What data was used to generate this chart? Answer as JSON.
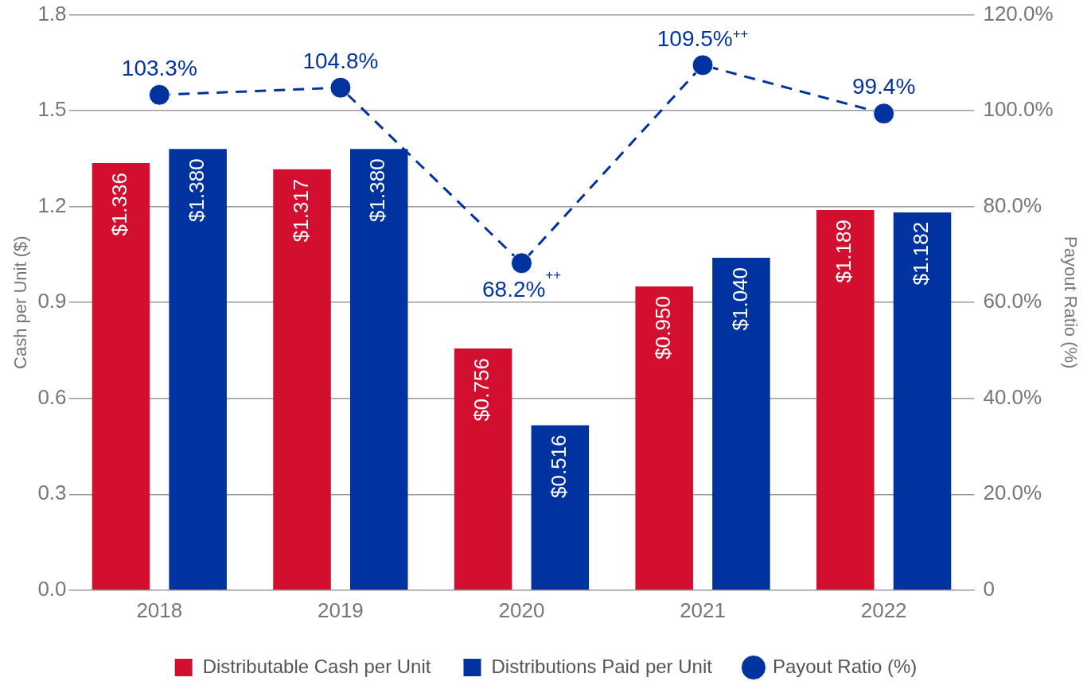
{
  "chart_data": {
    "type": "bar",
    "categories": [
      "2018",
      "2019",
      "2020",
      "2021",
      "2022"
    ],
    "ylabel": "Cash per Unit ($)",
    "y2label": "Payout Ratio (%)",
    "ylim": [
      0,
      1.8
    ],
    "yticks": [
      {
        "value": 0,
        "label": "0.0"
      },
      0.3,
      0.6,
      0.9,
      1.2,
      1.5,
      1.8
    ],
    "y2lim": [
      0,
      120
    ],
    "y2ticks": [
      {
        "value": 0,
        "label": "0"
      },
      {
        "value": 20,
        "label": "20.0%"
      },
      {
        "value": 40,
        "label": "40.0%"
      },
      {
        "value": 60,
        "label": "60.0%"
      },
      {
        "value": 80,
        "label": "80.0%"
      },
      {
        "value": 100,
        "label": "100.0%"
      },
      {
        "value": 120,
        "label": "120.0%"
      }
    ],
    "series": [
      {
        "name": "Distributable Cash per Unit",
        "color": "#d20f2f",
        "values": [
          1.336,
          1.317,
          0.756,
          0.95,
          1.189
        ],
        "value_labels": [
          "$1.336",
          "$1.317",
          "$0.756",
          "$0.950",
          "$1.189"
        ]
      },
      {
        "name": "Distributions Paid per Unit",
        "color": "#0033a0",
        "values": [
          1.38,
          1.38,
          0.516,
          1.04,
          1.182
        ],
        "value_labels": [
          "$1.380",
          "$1.380",
          "$0.516",
          "$1.040",
          "$1.182"
        ]
      },
      {
        "name": "Payout Ratio (%)",
        "type": "line",
        "axis": "y2",
        "color": "#0033a0",
        "marker": "circle",
        "line_style": "dashed",
        "values": [
          103.3,
          104.8,
          68.2,
          109.5,
          99.4
        ],
        "value_labels": [
          "103.3%",
          "104.8%",
          "68.2%$^{++}$",
          "109.5%$^{++}$",
          "99.4%"
        ]
      }
    ],
    "grid": "y",
    "legend": "bottom"
  }
}
